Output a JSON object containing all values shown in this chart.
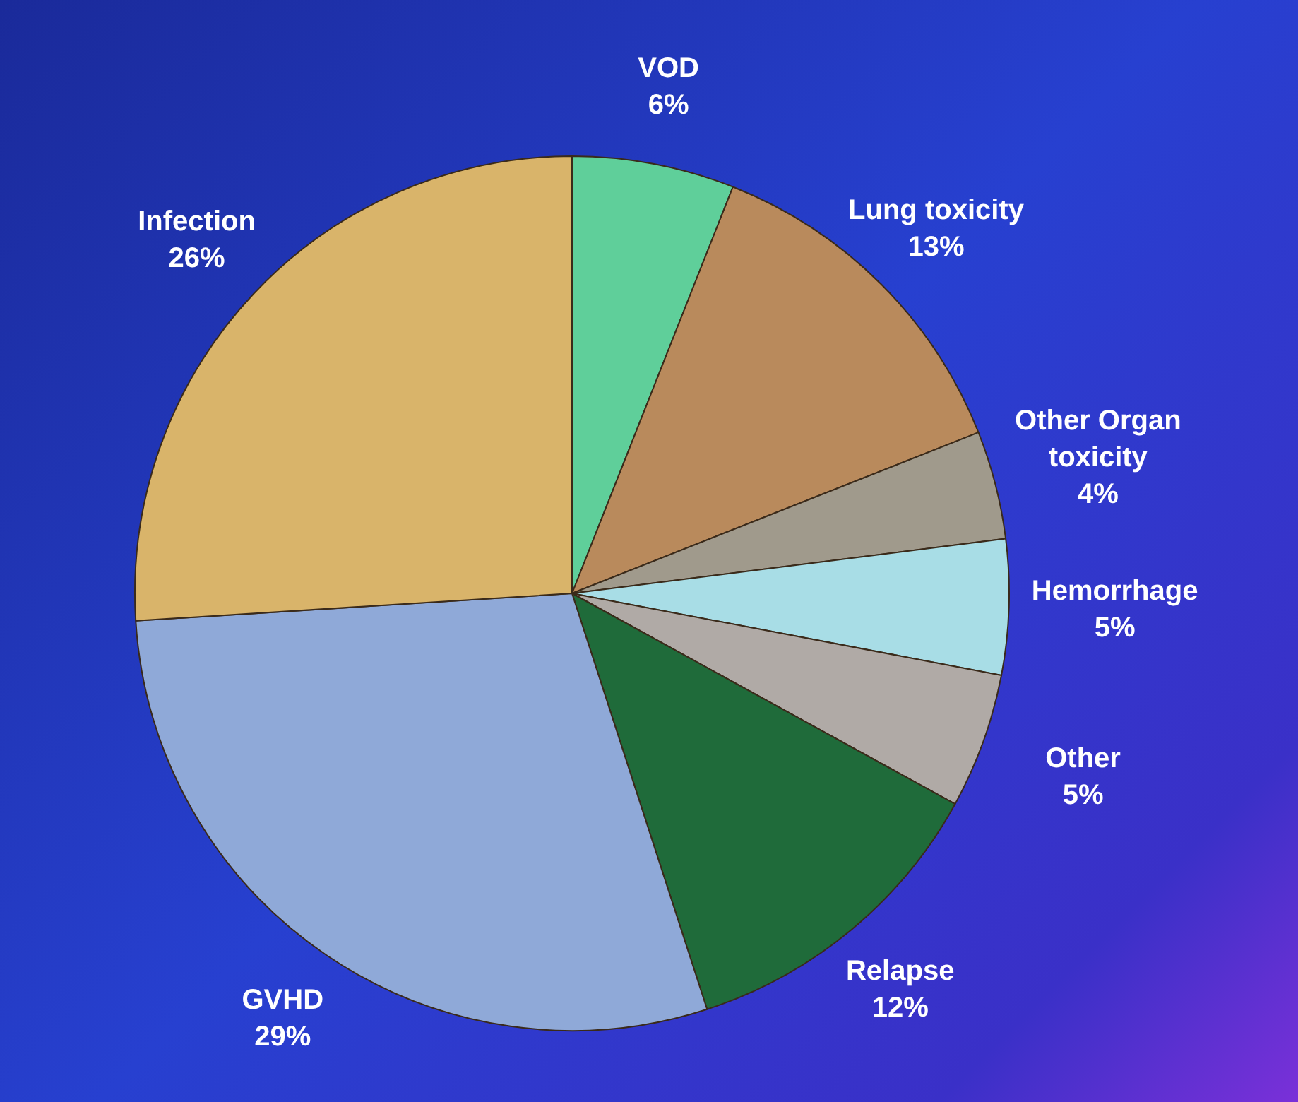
{
  "chart_data": {
    "type": "pie",
    "categories": [
      "VOD",
      "Lung toxicity",
      "Other Organ toxicity",
      "Hemorrhage",
      "Other",
      "Relapse",
      "GVHD",
      "Infection"
    ],
    "values": [
      6,
      13,
      4,
      5,
      5,
      12,
      29,
      26
    ],
    "colors": [
      "#5fcf9a",
      "#b98a5c",
      "#a09a8c",
      "#a8dde6",
      "#b0aaa6",
      "#1f6b3a",
      "#8fa9d8",
      "#d9b46a"
    ],
    "value_labels": [
      "6%",
      "13%",
      "4%",
      "5%",
      "5%",
      "12%",
      "29%",
      "26%"
    ],
    "legend": false
  }
}
